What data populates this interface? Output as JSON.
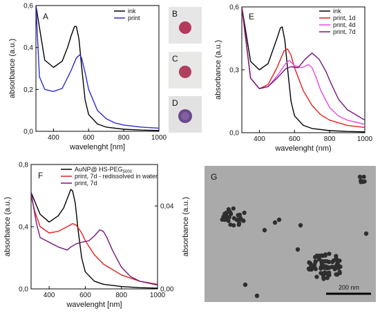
{
  "colors": {
    "ink": "#000000",
    "print": "#2b2bd4",
    "print_1d": "#e0201a",
    "print_4d": "#e844e8",
    "print_7d": "#74167a",
    "redissolved": "#e0201a"
  },
  "photo_panels": [
    {
      "label": "B",
      "spot_color": "#b5395c"
    },
    {
      "label": "C",
      "spot_color": "#b0405e"
    },
    {
      "label": "D",
      "spot_color": "#6a4a8c"
    }
  ],
  "tem_panel": {
    "label": "G",
    "scale_text": "200 nm"
  },
  "chart_data": [
    {
      "panel": "A",
      "type": "line",
      "xlabel": "wavelenght [nm]",
      "ylabel": "absorbance (a.u.)",
      "xlim": [
        300,
        1000
      ],
      "ylim": [
        0,
        0.6
      ],
      "xticks": [
        "400",
        "600",
        "800",
        "1000"
      ],
      "yticks": [
        "0,0",
        "0,2",
        "0,4",
        "0,6"
      ],
      "legend": "top-right",
      "series": [
        {
          "name": "ink",
          "x": [
            300,
            350,
            400,
            450,
            480,
            500,
            520,
            530,
            545,
            560,
            580,
            600,
            650,
            700,
            800,
            900,
            1000
          ],
          "y": [
            0.6,
            0.34,
            0.305,
            0.335,
            0.4,
            0.455,
            0.5,
            0.5,
            0.44,
            0.31,
            0.15,
            0.08,
            0.035,
            0.02,
            0.01,
            0.006,
            0.004
          ]
        },
        {
          "name": "print",
          "x": [
            300,
            320,
            350,
            400,
            450,
            500,
            530,
            550,
            560,
            580,
            600,
            650,
            700,
            750,
            800,
            900,
            1000
          ],
          "y": [
            0.6,
            0.26,
            0.2,
            0.19,
            0.205,
            0.29,
            0.35,
            0.365,
            0.35,
            0.28,
            0.2,
            0.1,
            0.06,
            0.04,
            0.03,
            0.02,
            0.015
          ]
        }
      ]
    },
    {
      "panel": "E",
      "type": "line",
      "xlabel": "wavelenght (nm)",
      "ylabel": "absorbance (a.u.)",
      "xlim": [
        300,
        1000
      ],
      "ylim": [
        0,
        0.6
      ],
      "xticks": [
        "400",
        "600",
        "800",
        "1000"
      ],
      "yticks": [
        "0,0",
        "0,3",
        "0,6"
      ],
      "legend": "top-right",
      "series": [
        {
          "name": "ink",
          "x": [
            300,
            350,
            400,
            450,
            500,
            520,
            530,
            545,
            560,
            580,
            600,
            650,
            700,
            800,
            900,
            1000
          ],
          "y": [
            0.6,
            0.34,
            0.3,
            0.33,
            0.45,
            0.5,
            0.505,
            0.44,
            0.31,
            0.15,
            0.08,
            0.035,
            0.02,
            0.01,
            0.006,
            0.004
          ]
        },
        {
          "name": "print, 1d",
          "x": [
            300,
            350,
            400,
            450,
            500,
            540,
            560,
            580,
            600,
            650,
            700,
            750,
            800,
            900,
            1000
          ],
          "y": [
            0.6,
            0.26,
            0.21,
            0.23,
            0.31,
            0.39,
            0.4,
            0.37,
            0.31,
            0.2,
            0.13,
            0.085,
            0.06,
            0.035,
            0.025
          ]
        },
        {
          "name": "print, 4d",
          "x": [
            300,
            350,
            400,
            450,
            500,
            550,
            570,
            600,
            640,
            680,
            700,
            720,
            750,
            800,
            850,
            900,
            1000
          ],
          "y": [
            0.6,
            0.26,
            0.21,
            0.22,
            0.27,
            0.33,
            0.345,
            0.32,
            0.31,
            0.325,
            0.31,
            0.27,
            0.2,
            0.12,
            0.08,
            0.06,
            0.04
          ]
        },
        {
          "name": "print, 7d",
          "x": [
            300,
            350,
            400,
            450,
            500,
            550,
            580,
            620,
            660,
            700,
            740,
            780,
            800,
            850,
            900,
            1000
          ],
          "y": [
            0.6,
            0.26,
            0.21,
            0.22,
            0.26,
            0.305,
            0.315,
            0.31,
            0.35,
            0.38,
            0.35,
            0.29,
            0.25,
            0.16,
            0.11,
            0.06
          ]
        }
      ]
    },
    {
      "panel": "F",
      "type": "line",
      "xlabel": "wavelenght [nm]",
      "ylabel": "absorbance (a.u.)",
      "ylabel_right": "absorbance (a.u.)",
      "xlim": [
        300,
        1000
      ],
      "ylim": [
        0,
        0.8
      ],
      "ylim_right": [
        0,
        0.06
      ],
      "xticks": [
        "400",
        "600",
        "800",
        "1000"
      ],
      "yticks": [
        "0,0",
        "0,4",
        "0,8"
      ],
      "yticks_right": [
        "0,00",
        "0,04"
      ],
      "legend": "top-right",
      "series": [
        {
          "name": "AuNP@ HS-PEG",
          "name_sub": "5000",
          "axis": "left",
          "x": [
            300,
            350,
            400,
            450,
            480,
            500,
            520,
            530,
            545,
            560,
            580,
            600,
            650,
            700,
            800,
            900,
            1000
          ],
          "y": [
            0.62,
            0.48,
            0.43,
            0.47,
            0.52,
            0.58,
            0.64,
            0.63,
            0.55,
            0.38,
            0.2,
            0.11,
            0.05,
            0.03,
            0.015,
            0.008,
            0.005
          ]
        },
        {
          "name": "print, 7d - redissolved in water",
          "axis": "left",
          "x": [
            300,
            320,
            350,
            400,
            450,
            500,
            530,
            550,
            580,
            600,
            650,
            700,
            800,
            900,
            1000
          ],
          "y": [
            0.6,
            0.5,
            0.4,
            0.36,
            0.37,
            0.4,
            0.42,
            0.41,
            0.36,
            0.31,
            0.22,
            0.16,
            0.09,
            0.05,
            0.03
          ]
        },
        {
          "name": "print, 7d",
          "axis": "left",
          "x": [
            300,
            330,
            350,
            400,
            450,
            500,
            520,
            550,
            580,
            620,
            650,
            680,
            700,
            720,
            750,
            800,
            850,
            900,
            1000
          ],
          "y": [
            0.62,
            0.42,
            0.33,
            0.3,
            0.27,
            0.25,
            0.27,
            0.29,
            0.3,
            0.31,
            0.34,
            0.38,
            0.37,
            0.33,
            0.25,
            0.14,
            0.08,
            0.05,
            0.025
          ]
        }
      ]
    }
  ]
}
